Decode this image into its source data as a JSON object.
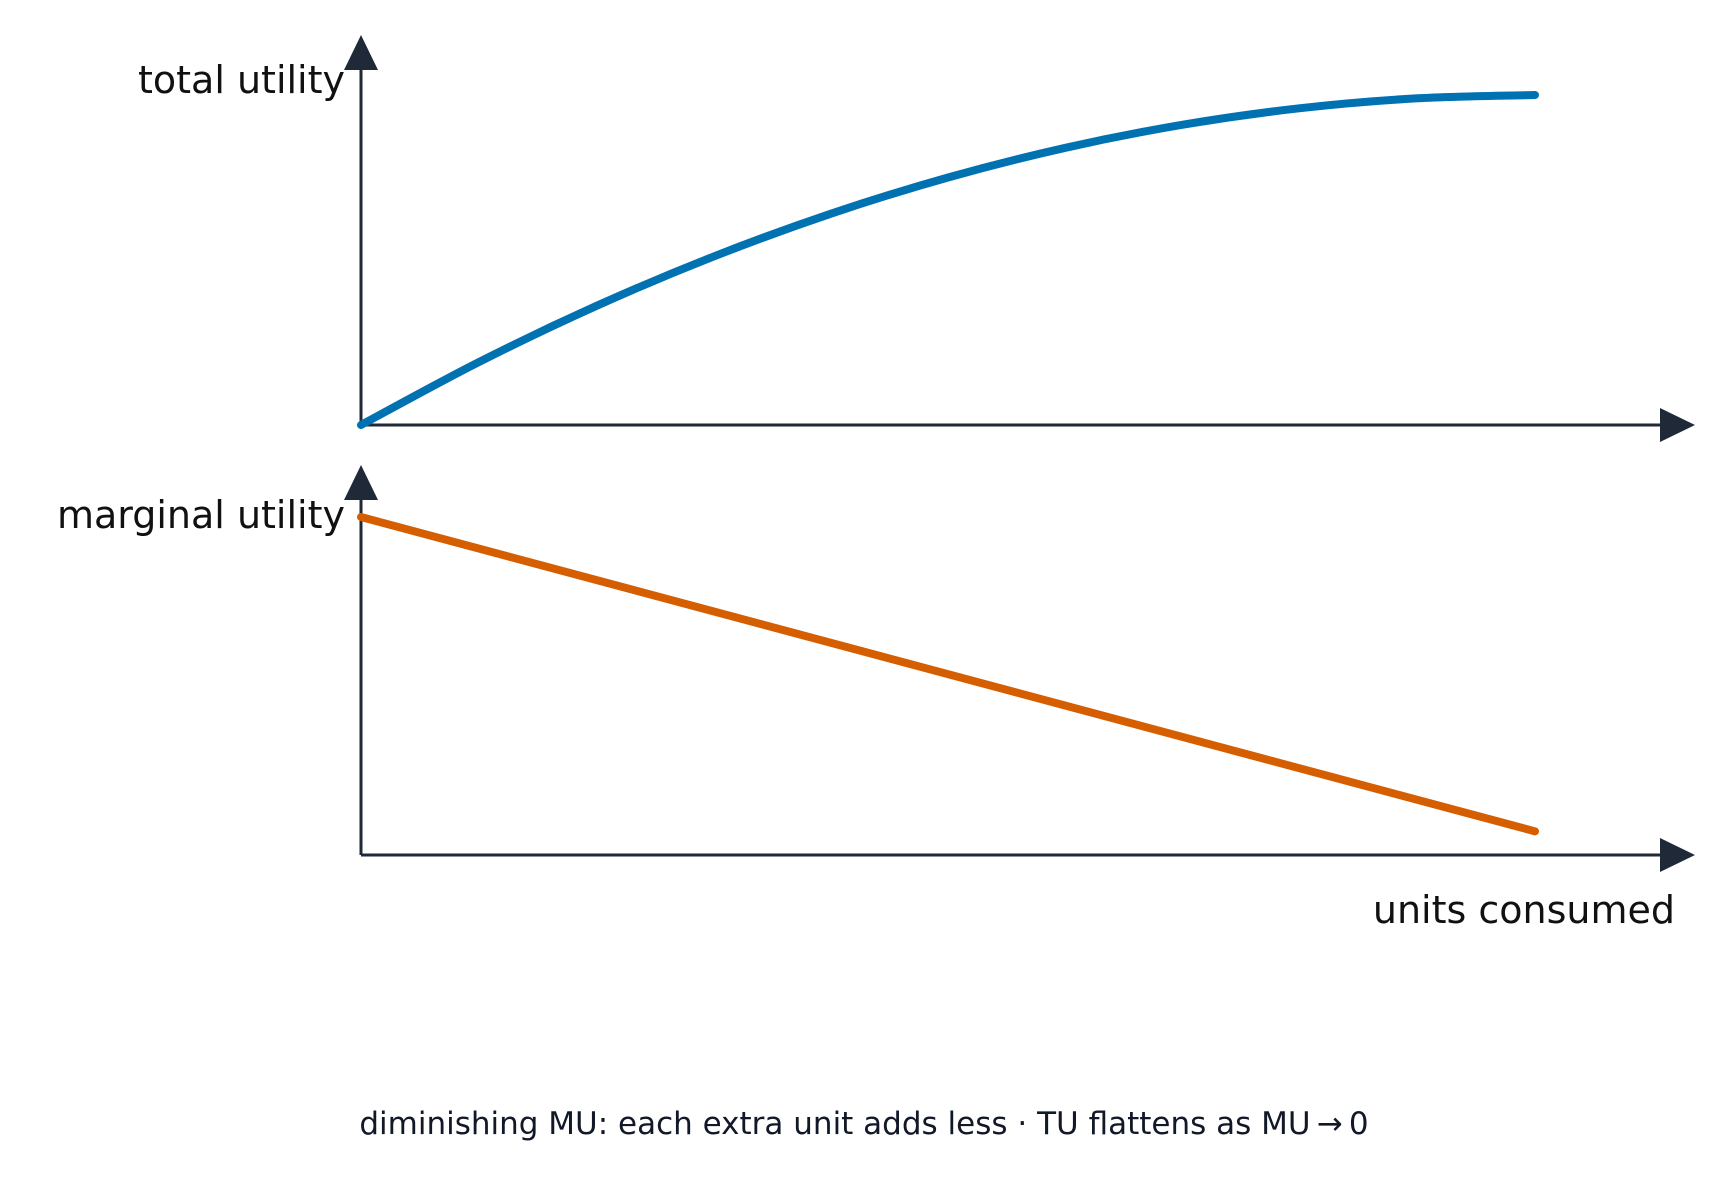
{
  "chart_data": [
    {
      "type": "line",
      "ylabel": "total utility",
      "xlabel": "",
      "xlim": [
        0,
        10
      ],
      "ylim": [
        0,
        100
      ],
      "grid": false,
      "series": [
        {
          "color": "#0072b2",
          "x": [
            0,
            1,
            2,
            3,
            4,
            5,
            6,
            7,
            8,
            9,
            10
          ],
          "y": [
            0,
            19,
            36,
            51,
            64,
            75,
            84,
            91,
            96,
            99,
            100
          ]
        }
      ]
    },
    {
      "type": "line",
      "ylabel": "marginal utility",
      "xlabel": "units consumed",
      "xlim": [
        0,
        10
      ],
      "ylim": [
        0,
        100
      ],
      "grid": false,
      "series": [
        {
          "color": "#d55e00",
          "x": [
            0,
            10
          ],
          "y": [
            100,
            7
          ]
        }
      ]
    }
  ],
  "caption": "diminishing MU: each extra unit adds less  ·  TU flattens as MU → 0",
  "colors": {
    "axis": "#1f2937"
  }
}
